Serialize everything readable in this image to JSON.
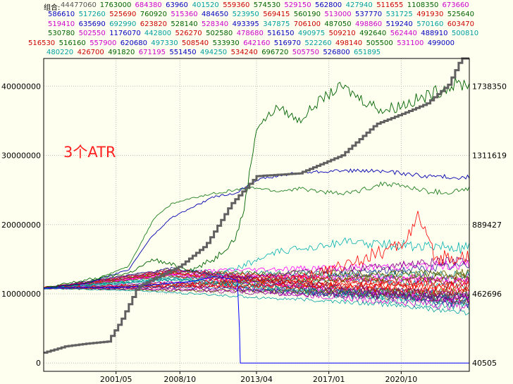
{
  "legend": {
    "prefix": "组合:",
    "rows": [
      [
        [
          "44477060",
          "#555555"
        ],
        [
          "1763000",
          "#006400"
        ],
        [
          "684380",
          "#cc00cc"
        ],
        [
          "63960",
          "#0000c0"
        ],
        [
          "401520",
          "#00a0a0"
        ],
        [
          "559360",
          "#cc0000"
        ],
        [
          "574530",
          "#006400"
        ],
        [
          "529150",
          "#cc00cc"
        ],
        [
          "562800",
          "#0000c0"
        ],
        [
          "427940",
          "#00a0a0"
        ],
        [
          "511655",
          "#cc0000"
        ],
        [
          "1108350",
          "#006400"
        ],
        [
          "673660",
          "#cc00cc"
        ]
      ],
      [
        [
          "586610",
          "#0000c0"
        ],
        [
          "517260",
          "#00a0a0"
        ],
        [
          "525690",
          "#cc0000"
        ],
        [
          "760920",
          "#006400"
        ],
        [
          "515360",
          "#cc00cc"
        ],
        [
          "484650",
          "#0000c0"
        ],
        [
          "523950",
          "#00a0a0"
        ],
        [
          "569415",
          "#cc0000"
        ],
        [
          "560190",
          "#006400"
        ],
        [
          "513000",
          "#cc00cc"
        ],
        [
          "537770",
          "#0000c0"
        ],
        [
          "531725",
          "#00a0a0"
        ],
        [
          "491930",
          "#cc0000"
        ],
        [
          "525640",
          "#006400"
        ]
      ],
      [
        [
          "519410",
          "#cc00cc"
        ],
        [
          "635690",
          "#0000c0"
        ],
        [
          "692990",
          "#00a0a0"
        ],
        [
          "623820",
          "#cc0000"
        ],
        [
          "528140",
          "#006400"
        ],
        [
          "528340",
          "#cc00cc"
        ],
        [
          "493395",
          "#0000c0"
        ],
        [
          "347875",
          "#00a0a0"
        ],
        [
          "706100",
          "#cc0000"
        ],
        [
          "487050",
          "#006400"
        ],
        [
          "498860",
          "#cc00cc"
        ],
        [
          "519240",
          "#0000c0"
        ],
        [
          "570160",
          "#00a0a0"
        ],
        [
          "603470",
          "#cc0000"
        ]
      ],
      [
        [
          "530780",
          "#006400"
        ],
        [
          "502550",
          "#cc00cc"
        ],
        [
          "1176070",
          "#0000c0"
        ],
        [
          "442800",
          "#00a0a0"
        ],
        [
          "526270",
          "#cc0000"
        ],
        [
          "502580",
          "#006400"
        ],
        [
          "478680",
          "#cc00cc"
        ],
        [
          "516150",
          "#0000c0"
        ],
        [
          "490975",
          "#00a0a0"
        ],
        [
          "509210",
          "#cc0000"
        ],
        [
          "492640",
          "#006400"
        ],
        [
          "562440",
          "#cc00cc"
        ],
        [
          "488910",
          "#0000c0"
        ],
        [
          "500810",
          "#00a0a0"
        ]
      ],
      [
        [
          "516530",
          "#cc0000"
        ],
        [
          "516160",
          "#006400"
        ],
        [
          "557900",
          "#cc00cc"
        ],
        [
          "620680",
          "#0000c0"
        ],
        [
          "497330",
          "#00a0a0"
        ],
        [
          "508540",
          "#cc0000"
        ],
        [
          "533930",
          "#006400"
        ],
        [
          "642160",
          "#cc00cc"
        ],
        [
          "516970",
          "#0000c0"
        ],
        [
          "522260",
          "#00a0a0"
        ],
        [
          "498140",
          "#cc0000"
        ],
        [
          "505500",
          "#006400"
        ],
        [
          "531100",
          "#cc00cc"
        ],
        [
          "499000",
          "#0000c0"
        ]
      ],
      [
        [
          "480220",
          "#00a0a0"
        ],
        [
          "426700",
          "#cc0000"
        ],
        [
          "491820",
          "#006400"
        ],
        [
          "671195",
          "#cc00cc"
        ],
        [
          "551450",
          "#0000c0"
        ],
        [
          "494250",
          "#00a0a0"
        ],
        [
          "534240",
          "#cc0000"
        ],
        [
          "696720",
          "#006400"
        ],
        [
          "505750",
          "#cc00cc"
        ],
        [
          "526800",
          "#0000c0"
        ],
        [
          "651895",
          "#00a0a0"
        ]
      ]
    ]
  },
  "annotation": "3个ATR",
  "chart_data": {
    "type": "line",
    "x_ticks": [
      "2001/05",
      "2008/10",
      "2013/04",
      "2017/01",
      "2020/10"
    ],
    "y_left_ticks": [
      0,
      10000000,
      20000000,
      30000000,
      40000000
    ],
    "y_right_ticks": [
      "40505",
      "462696",
      "889427",
      "1311619",
      "1738350"
    ],
    "ylim": [
      -1200000,
      44000000
    ],
    "grid": true,
    "main_series": {
      "color": "#606060",
      "points": [
        [
          0,
          1500000
        ],
        [
          0.05,
          2400000
        ],
        [
          0.1,
          2800000
        ],
        [
          0.15,
          3100000
        ],
        [
          0.18,
          6000000
        ],
        [
          0.22,
          11000000
        ],
        [
          0.26,
          12200000
        ],
        [
          0.32,
          14000000
        ],
        [
          0.38,
          17000000
        ],
        [
          0.44,
          23000000
        ],
        [
          0.5,
          27000000
        ],
        [
          0.6,
          27400000
        ],
        [
          0.7,
          30000000
        ],
        [
          0.78,
          34500000
        ],
        [
          0.85,
          36200000
        ],
        [
          0.9,
          37500000
        ],
        [
          0.95,
          40200000
        ],
        [
          0.98,
          44000000
        ],
        [
          1.0,
          44000000
        ]
      ]
    },
    "green_series": {
      "color": "#006400",
      "points": [
        [
          0,
          10800000
        ],
        [
          0.1,
          12000000
        ],
        [
          0.2,
          13000000
        ],
        [
          0.26,
          15000000
        ],
        [
          0.28,
          14500000
        ],
        [
          0.35,
          13500000
        ],
        [
          0.4,
          15000000
        ],
        [
          0.45,
          18000000
        ],
        [
          0.47,
          22000000
        ],
        [
          0.5,
          34000000
        ],
        [
          0.55,
          37000000
        ],
        [
          0.6,
          35000000
        ],
        [
          0.65,
          38000000
        ],
        [
          0.7,
          40000000
        ],
        [
          0.75,
          38000000
        ],
        [
          0.8,
          36500000
        ],
        [
          0.85,
          37500000
        ],
        [
          0.9,
          38500000
        ],
        [
          0.95,
          40000000
        ],
        [
          1.0,
          40500000
        ]
      ]
    },
    "dark_blue_series": {
      "color": "#0000b0",
      "points": [
        [
          0,
          10800000
        ],
        [
          0.1,
          11500000
        ],
        [
          0.2,
          13500000
        ],
        [
          0.25,
          18000000
        ],
        [
          0.3,
          21000000
        ],
        [
          0.35,
          22500000
        ],
        [
          0.4,
          24000000
        ],
        [
          0.45,
          24500000
        ],
        [
          0.5,
          26500000
        ],
        [
          0.55,
          27000000
        ],
        [
          0.6,
          27500000
        ],
        [
          0.7,
          27800000
        ],
        [
          0.8,
          27700000
        ],
        [
          0.9,
          27000000
        ],
        [
          1.0,
          26800000
        ]
      ]
    },
    "mid_green_series": {
      "color": "#208020",
      "points": [
        [
          0,
          10800000
        ],
        [
          0.1,
          11500000
        ],
        [
          0.2,
          14000000
        ],
        [
          0.26,
          21000000
        ],
        [
          0.3,
          23000000
        ],
        [
          0.35,
          23800000
        ],
        [
          0.4,
          24500000
        ],
        [
          0.45,
          25000000
        ],
        [
          0.5,
          25300000
        ],
        [
          0.55,
          24800000
        ],
        [
          0.6,
          25200000
        ],
        [
          0.7,
          24400000
        ],
        [
          0.75,
          25000000
        ],
        [
          0.8,
          26000000
        ],
        [
          0.85,
          25500000
        ],
        [
          0.9,
          24800000
        ],
        [
          0.95,
          24600000
        ],
        [
          1.0,
          25200000
        ]
      ]
    },
    "crash_series": {
      "color": "#0000ff",
      "points": [
        [
          0,
          10800000
        ],
        [
          0.2,
          11000000
        ],
        [
          0.35,
          11800000
        ],
        [
          0.4,
          12500000
        ],
        [
          0.455,
          12000000
        ],
        [
          0.46,
          5000000
        ],
        [
          0.462,
          0
        ],
        [
          1.0,
          0
        ]
      ]
    },
    "cluster_colors": [
      "#00a0a0",
      "#cc00cc",
      "#cc0000",
      "#8b4513",
      "#2020a0",
      "#ff00ff",
      "#008080",
      "#ff0000",
      "#606000",
      "#800080"
    ]
  }
}
